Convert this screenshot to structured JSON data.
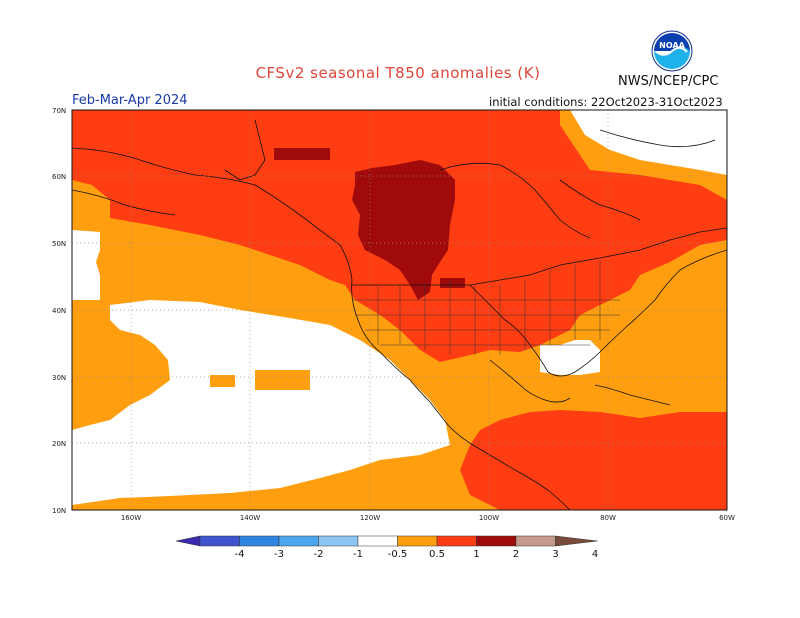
{
  "title": "CFSv2 seasonal T850 anomalies (K)",
  "season": "Feb-Mar-Apr 2024",
  "agency": "NWS/NCEP/CPC",
  "initial_conditions": "initial conditions: 22Oct2023-31Oct2023",
  "logo_text": "NOAA",
  "lat_labels": [
    "70N",
    "60N",
    "50N",
    "40N",
    "30N",
    "20N",
    "10N"
  ],
  "lon_labels": [
    "160W",
    "140W",
    "120W",
    "100W",
    "80W",
    "60W"
  ],
  "colorbar": {
    "labels": [
      "-4",
      "-3",
      "-2",
      "-1",
      "-0.5",
      "0.5",
      "1",
      "2",
      "3",
      "4"
    ],
    "colors": [
      "#3b2ab0",
      "#3f55d0",
      "#2e86e0",
      "#4aa6ef",
      "#8cc6f4",
      "#ffffff",
      "#ff9f0f",
      "#ff3d12",
      "#a00a0a",
      "#c49a8c",
      "#7a4b3a"
    ]
  },
  "anomaly_colors": {
    "0.5-1": "#ff9f0f",
    "1-2": "#ff3d12",
    "2-3": "#a00a0a",
    "neutral": "#ffffff"
  }
}
